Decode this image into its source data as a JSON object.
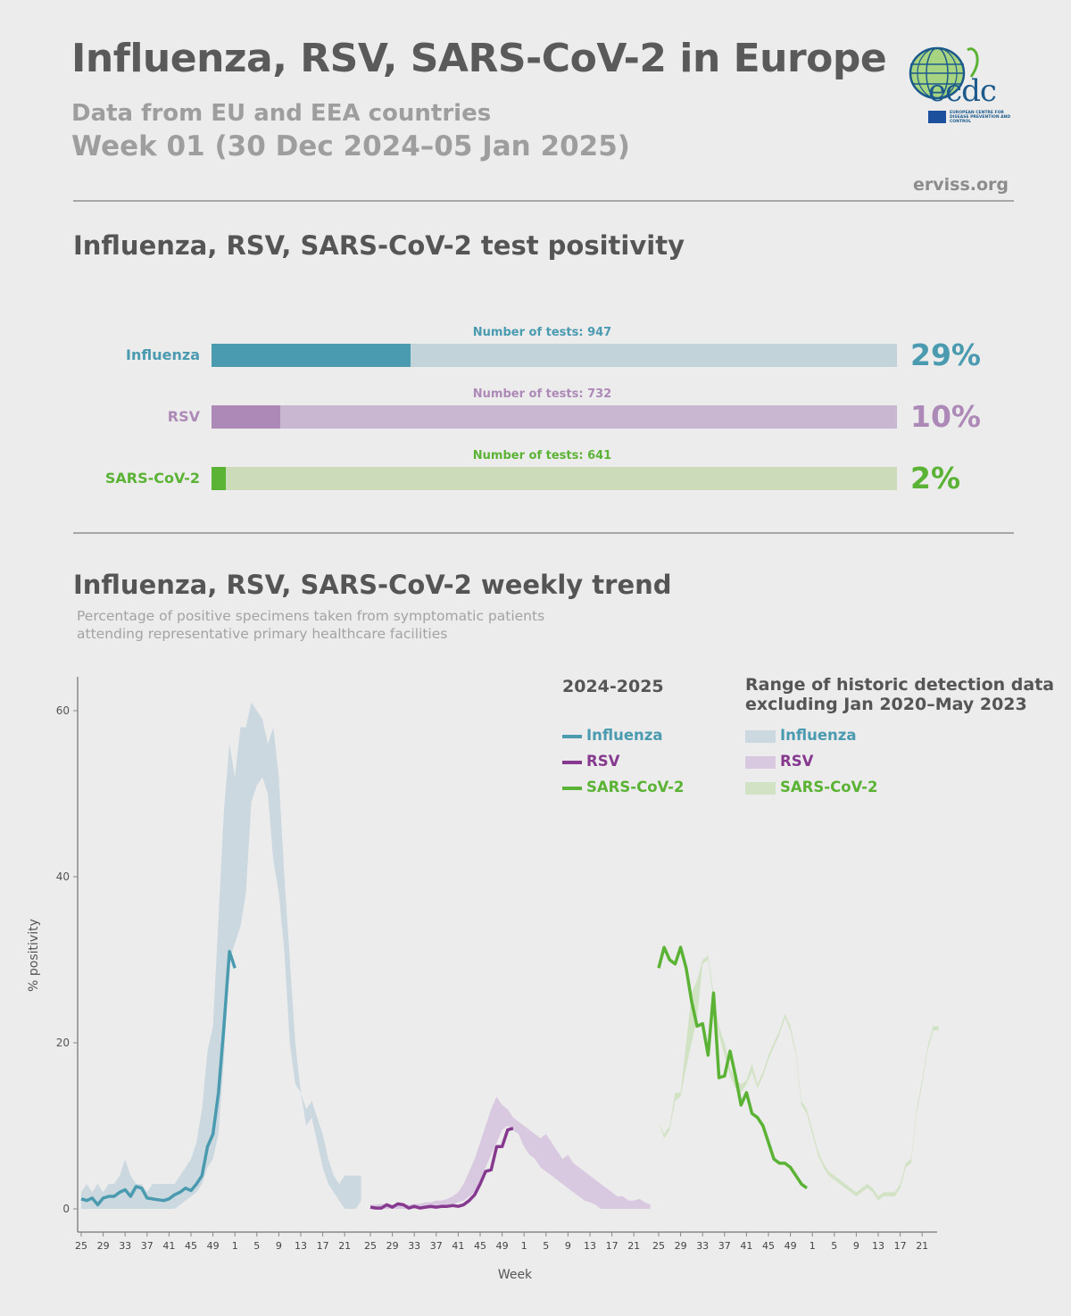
{
  "header": {
    "title": "Influenza, RSV, SARS-CoV-2 in Europe",
    "subtitle": "Data from EU and EEA countries",
    "week": "Week 01 (30 Dec 2024–05 Jan 2025)",
    "site": "erviss.org",
    "logo_text": "ecdc",
    "logo_caption": "EUROPEAN CENTRE FOR DISEASE PREVENTION AND CONTROL"
  },
  "positivity": {
    "title": "Influenza, RSV, SARS-CoV-2 test positivity",
    "rows": [
      {
        "name": "Influenza",
        "tests_label": "Number of tests: 947",
        "percent": 29,
        "percent_label": "29%",
        "color": "#4a9ab0",
        "bg": "#c3d3da"
      },
      {
        "name": "RSV",
        "tests_label": "Number of tests: 732",
        "percent": 10,
        "percent_label": "10%",
        "color": "#ad89b8",
        "bg": "#c9b6d1"
      },
      {
        "name": "SARS-CoV-2",
        "tests_label": "Number of tests: 641",
        "percent": 2,
        "percent_label": "2%",
        "color": "#5bb335",
        "bg": "#ccdcbb"
      }
    ]
  },
  "trend": {
    "title": "Influenza, RSV, SARS-CoV-2 weekly trend",
    "note_line1": "Percentage of positive specimens taken from symptomatic patients",
    "note_line2": "attending representative primary healthcare facilities",
    "legend": {
      "current_head": "2024-2025",
      "historic_head1": "Range of historic detection data",
      "historic_head2": "excluding Jan 2020–May 2023",
      "items": [
        "Influenza",
        "RSV",
        "SARS-CoV-2"
      ]
    }
  },
  "chart_data": {
    "type": "line",
    "ylabel": "% positivity",
    "xlabel": "Week",
    "ylim": [
      0,
      65
    ],
    "yticks": [
      0,
      20,
      40,
      60
    ],
    "xticks": [
      "25",
      "29",
      "33",
      "37",
      "41",
      "45",
      "49",
      "1",
      "5",
      "9",
      "13",
      "17",
      "21"
    ],
    "weeks": [
      25,
      26,
      27,
      28,
      29,
      30,
      31,
      32,
      33,
      34,
      35,
      36,
      37,
      38,
      39,
      40,
      41,
      42,
      43,
      44,
      45,
      46,
      47,
      48,
      49,
      50,
      51,
      52,
      1,
      2,
      3,
      4,
      5,
      6,
      7,
      8,
      9,
      10,
      11,
      12,
      13,
      14,
      15,
      16,
      17,
      18,
      19,
      20,
      21,
      22,
      23,
      24
    ],
    "colors": {
      "influenza": "#4a9ab0",
      "rsv": "#86398f",
      "sars": "#5bb335",
      "influenza_range": "#cbd8df",
      "rsv_range": "#d8c8e0",
      "sars_range": "#d2e2c4"
    },
    "series": [
      {
        "name": "Influenza",
        "panel": 0,
        "current": [
          1.2,
          1.0,
          1.3,
          0.5,
          1.3,
          1.5,
          1.5,
          2.0,
          2.3,
          1.5,
          2.7,
          2.5,
          1.3,
          1.2,
          1.1,
          1.0,
          1.2,
          1.7,
          2.0,
          2.5,
          2.2,
          3.0,
          4.0,
          7.5,
          9.0,
          14.0,
          22.0,
          31.0,
          29.0
        ],
        "range_low": [
          0,
          0,
          0,
          0,
          0,
          0,
          0,
          0,
          0,
          0,
          0,
          0,
          0,
          0,
          0,
          0,
          0,
          0,
          0.5,
          1,
          1.5,
          2,
          3,
          5,
          6,
          9,
          18,
          30,
          32,
          34,
          38,
          49,
          51,
          52,
          50,
          42,
          38,
          31,
          20,
          15,
          14,
          10,
          11,
          8,
          5,
          3,
          2,
          1,
          0,
          0,
          0,
          1
        ],
        "range_high": [
          2,
          3,
          2,
          3,
          2,
          3,
          3,
          4,
          6,
          4,
          3,
          3,
          2,
          3,
          3,
          3,
          3,
          3,
          4,
          5,
          6,
          8,
          12,
          19,
          22,
          35,
          48,
          56,
          52,
          58,
          58,
          61,
          60,
          59,
          56,
          58,
          52,
          40,
          30,
          20,
          14,
          12,
          13,
          11,
          9,
          6,
          4,
          3,
          4,
          4,
          4,
          4
        ]
      },
      {
        "name": "RSV",
        "panel": 1,
        "current": [
          0.2,
          0.1,
          0.1,
          0.5,
          0.2,
          0.6,
          0.5,
          0.1,
          0.3,
          0.1,
          0.2,
          0.3,
          0.2,
          0.3,
          0.3,
          0.4,
          0.3,
          0.5,
          1.0,
          1.7,
          3.0,
          4.5,
          4.7,
          7.5,
          7.5,
          9.5,
          9.7
        ],
        "range_low": [
          0,
          0,
          0,
          0,
          0,
          0,
          0,
          0,
          0,
          0,
          0,
          0,
          0,
          0.2,
          0.3,
          0.5,
          0.8,
          1.0,
          1.5,
          2.0,
          3.5,
          5.0,
          6.5,
          8.0,
          9.5,
          10.0,
          9.5,
          9.0,
          7.5,
          6.5,
          6.0,
          5.0,
          4.5,
          4.0,
          3.5,
          3.0,
          2.5,
          2.0,
          1.5,
          1.0,
          0.8,
          0.5,
          0,
          0,
          0,
          0,
          0,
          0,
          0,
          0,
          0,
          0
        ],
        "range_high": [
          0.5,
          0.5,
          0.6,
          0.6,
          0.5,
          0.6,
          0.6,
          0.5,
          0.6,
          0.6,
          0.8,
          0.8,
          1.0,
          1.0,
          1.2,
          1.5,
          2.0,
          3.0,
          4.5,
          6.0,
          8.0,
          10.0,
          12.0,
          13.5,
          12.5,
          12.0,
          11.0,
          10.5,
          10.0,
          9.5,
          9.0,
          8.5,
          9.0,
          8.0,
          7.0,
          6.0,
          6.5,
          5.5,
          5.0,
          4.5,
          4.0,
          3.5,
          3.0,
          2.5,
          2.0,
          1.5,
          1.5,
          1.0,
          1.0,
          1.2,
          0.8,
          0.5
        ]
      },
      {
        "name": "SARS-CoV-2",
        "panel": 2,
        "current": [
          29.0,
          31.5,
          30.0,
          29.5,
          31.5,
          29.0,
          25.0,
          22.0,
          22.3,
          18.5,
          26.0,
          15.8,
          16.0,
          19.0,
          16.0,
          12.5,
          14.0,
          11.5,
          11.0,
          10.0,
          8.0,
          6.0,
          5.5,
          5.5,
          5.0,
          4.0,
          3.0,
          2.5
        ],
        "range_low": [
          10.5,
          8.5,
          9.5,
          13.0,
          13.5,
          17.0,
          20.0,
          23.0,
          29.5,
          30.0,
          25.0,
          21.0,
          18.5,
          16.0,
          14.5,
          14.0,
          15.0,
          16.5,
          14.5,
          16.0,
          18.0,
          19.5,
          21.0,
          23.0,
          21.5,
          18.5,
          12.5,
          11.5,
          9.0,
          6.5,
          5.0,
          4.0,
          3.5,
          3.0,
          2.5,
          2.0,
          1.5,
          2.0,
          2.5,
          2.0,
          1.0,
          1.5,
          1.5,
          1.5,
          2.5,
          5.0,
          5.5,
          11.5,
          15.0,
          19.0,
          21.5,
          21.5
        ],
        "range_high": [
          10.5,
          9.0,
          10.0,
          14.0,
          14.0,
          20.0,
          26.0,
          27.5,
          30.0,
          30.5,
          26.0,
          22.0,
          20.0,
          17.0,
          15.5,
          15.0,
          15.5,
          17.5,
          15.0,
          16.5,
          18.5,
          20.0,
          21.5,
          23.5,
          22.0,
          19.0,
          13.0,
          12.0,
          9.5,
          7.0,
          5.5,
          4.5,
          4.0,
          3.5,
          3.0,
          2.5,
          2.0,
          2.5,
          3.0,
          2.5,
          1.5,
          2.0,
          2.0,
          2.0,
          3.0,
          5.5,
          6.0,
          12.0,
          15.5,
          19.5,
          22.0,
          22.0
        ]
      }
    ]
  }
}
